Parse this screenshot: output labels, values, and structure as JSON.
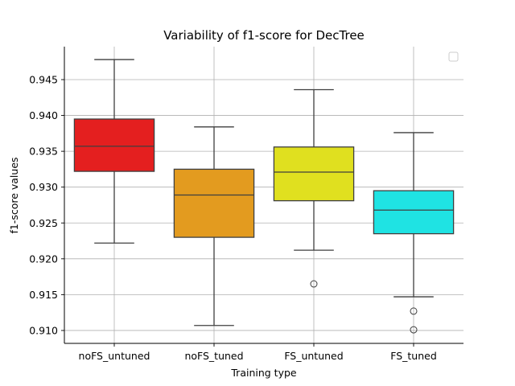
{
  "chart_data": {
    "type": "box",
    "title": "Variability of f1-score  for DecTree",
    "xlabel": "Training type",
    "ylabel": "f1-score values",
    "ylim": [
      0.9082,
      0.9496
    ],
    "yticks": [
      0.91,
      0.915,
      0.92,
      0.925,
      0.93,
      0.935,
      0.94,
      0.945
    ],
    "ytick_labels": [
      "0.910",
      "0.915",
      "0.920",
      "0.925",
      "0.930",
      "0.935",
      "0.940",
      "0.945"
    ],
    "grid": true,
    "legend": {
      "placement": "top-right",
      "entries": []
    },
    "categories": [
      "noFS_untuned",
      "noFS_tuned",
      "FS_untuned",
      "FS_tuned"
    ],
    "boxes": [
      {
        "category": "noFS_untuned",
        "color": "#e41f1f",
        "whisker_low": 0.9222,
        "q1": 0.9322,
        "median": 0.9357,
        "q3": 0.9395,
        "whisker_high": 0.9478,
        "outliers": []
      },
      {
        "category": "noFS_tuned",
        "color": "#e39b1f",
        "whisker_low": 0.9107,
        "q1": 0.923,
        "median": 0.9289,
        "q3": 0.9325,
        "whisker_high": 0.9384,
        "outliers": []
      },
      {
        "category": "FS_untuned",
        "color": "#e0e01f",
        "whisker_low": 0.9212,
        "q1": 0.9281,
        "median": 0.9321,
        "q3": 0.9356,
        "whisker_high": 0.9436,
        "outliers": [
          0.9165
        ]
      },
      {
        "category": "FS_tuned",
        "color": "#1fe3e3",
        "whisker_low": 0.9147,
        "q1": 0.9235,
        "median": 0.9268,
        "q3": 0.9295,
        "whisker_high": 0.9376,
        "outliers": [
          0.9127,
          0.9101
        ]
      }
    ]
  }
}
